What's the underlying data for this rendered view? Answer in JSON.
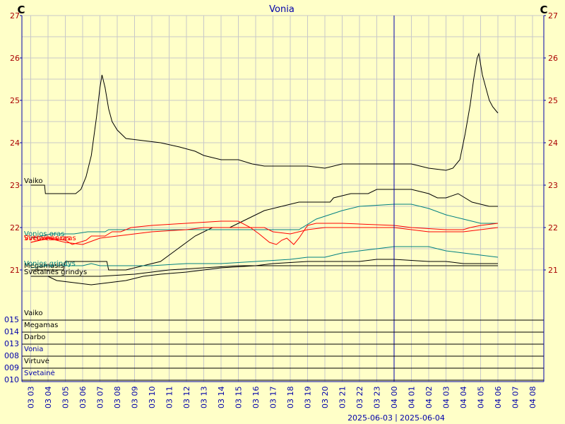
{
  "chart_data": {
    "type": "line",
    "title": "Vonia",
    "unit_left": "C",
    "unit_right": "C",
    "ylim": [
      20.05,
      27
    ],
    "y_ticks": [
      21,
      22,
      23,
      24,
      25,
      26,
      27
    ],
    "x_tick_labels": [
      {
        "date": "03",
        "hour": "03"
      },
      {
        "date": "03",
        "hour": "04"
      },
      {
        "date": "03",
        "hour": "05"
      },
      {
        "date": "03",
        "hour": "06"
      },
      {
        "date": "03",
        "hour": "07"
      },
      {
        "date": "03",
        "hour": "08"
      },
      {
        "date": "03",
        "hour": "09"
      },
      {
        "date": "03",
        "hour": "10"
      },
      {
        "date": "03",
        "hour": "11"
      },
      {
        "date": "03",
        "hour": "12"
      },
      {
        "date": "03",
        "hour": "13"
      },
      {
        "date": "03",
        "hour": "14"
      },
      {
        "date": "03",
        "hour": "15"
      },
      {
        "date": "03",
        "hour": "16"
      },
      {
        "date": "03",
        "hour": "17"
      },
      {
        "date": "03",
        "hour": "18"
      },
      {
        "date": "03",
        "hour": "19"
      },
      {
        "date": "03",
        "hour": "20"
      },
      {
        "date": "03",
        "hour": "21"
      },
      {
        "date": "03",
        "hour": "22"
      },
      {
        "date": "03",
        "hour": "23"
      },
      {
        "date": "04",
        "hour": "00"
      },
      {
        "date": "04",
        "hour": "01"
      },
      {
        "date": "04",
        "hour": "02"
      },
      {
        "date": "04",
        "hour": "03"
      },
      {
        "date": "04",
        "hour": "04"
      },
      {
        "date": "04",
        "hour": "05"
      },
      {
        "date": "04",
        "hour": "06"
      },
      {
        "date": "04",
        "hour": "07"
      },
      {
        "date": "04",
        "hour": "08"
      }
    ],
    "date_labels": [
      "2025-06-03",
      "2025-06-04"
    ],
    "grid": true,
    "colors": {
      "background": "#ffffc8",
      "grid": "#c8c8c8",
      "tick_text": "#aa0000",
      "black": "#000000",
      "red": "#ff0000",
      "teal": "#008080",
      "blue": "#0000aa"
    },
    "series": [
      {
        "name": "Vaiko",
        "color": "#000000",
        "points": [
          [
            3.0,
            23.0
          ],
          [
            3.8,
            23.0
          ],
          [
            3.85,
            22.8
          ],
          [
            4.7,
            22.8
          ],
          [
            5.6,
            22.8
          ],
          [
            5.9,
            22.9
          ],
          [
            6.2,
            23.2
          ],
          [
            6.5,
            23.7
          ],
          [
            6.8,
            24.6
          ],
          [
            7.0,
            25.3
          ],
          [
            7.12,
            25.6
          ],
          [
            7.3,
            25.3
          ],
          [
            7.5,
            24.8
          ],
          [
            7.7,
            24.5
          ],
          [
            8.0,
            24.3
          ],
          [
            8.5,
            24.1
          ],
          [
            10.5,
            24.0
          ],
          [
            11.6,
            23.9
          ],
          [
            12.5,
            23.8
          ],
          [
            13.0,
            23.7
          ],
          [
            14.0,
            23.6
          ],
          [
            15.0,
            23.6
          ],
          [
            15.8,
            23.5
          ],
          [
            16.5,
            23.45
          ],
          [
            18.0,
            23.45
          ],
          [
            18.5,
            23.45
          ],
          [
            19.0,
            23.45
          ],
          [
            20.0,
            23.4
          ],
          [
            21.0,
            23.5
          ],
          [
            23.0,
            23.5
          ],
          [
            24.0,
            23.5
          ],
          [
            25.0,
            23.5
          ],
          [
            26.0,
            23.4
          ],
          [
            27.0,
            23.35
          ],
          [
            27.4,
            23.4
          ],
          [
            27.8,
            23.6
          ],
          [
            28.1,
            24.2
          ],
          [
            28.4,
            24.9
          ],
          [
            28.6,
            25.5
          ],
          [
            28.8,
            26.0
          ],
          [
            28.9,
            26.1
          ],
          [
            29.1,
            25.6
          ],
          [
            29.3,
            25.3
          ],
          [
            29.5,
            25.0
          ],
          [
            29.7,
            24.85
          ],
          [
            29.9,
            24.75
          ],
          [
            30.0,
            24.7
          ]
        ]
      },
      {
        "name": "Megamasis",
        "color": "#000000",
        "points": [
          [
            3.0,
            21.0
          ],
          [
            4.9,
            21.0
          ],
          [
            5.0,
            21.2
          ],
          [
            6.0,
            21.2
          ],
          [
            7.4,
            21.2
          ],
          [
            7.5,
            21.0
          ],
          [
            8.5,
            21.0
          ],
          [
            9.0,
            21.05
          ],
          [
            10.5,
            21.2
          ],
          [
            11.5,
            21.5
          ],
          [
            12.5,
            21.8
          ],
          [
            13.5,
            22.0
          ],
          [
            14.5,
            22.0
          ],
          [
            15.5,
            22.2
          ],
          [
            16.5,
            22.4
          ],
          [
            17.5,
            22.5
          ],
          [
            18.5,
            22.6
          ],
          [
            20.0,
            22.6
          ],
          [
            20.3,
            22.6
          ],
          [
            20.5,
            22.7
          ],
          [
            21.5,
            22.8
          ],
          [
            22.5,
            22.8
          ],
          [
            23.0,
            22.9
          ],
          [
            25.0,
            22.9
          ],
          [
            26.0,
            22.8
          ],
          [
            26.5,
            22.7
          ],
          [
            27.0,
            22.7
          ],
          [
            27.7,
            22.8
          ],
          [
            28.5,
            22.6
          ],
          [
            29.5,
            22.5
          ],
          [
            30.0,
            22.5
          ]
        ]
      },
      {
        "name": "Vonios oras",
        "color": "#008080",
        "points": [
          [
            3.0,
            21.75
          ],
          [
            4.2,
            21.85
          ],
          [
            5.5,
            21.85
          ],
          [
            6.3,
            21.9
          ],
          [
            7.3,
            21.9
          ],
          [
            7.5,
            21.95
          ],
          [
            9.0,
            21.95
          ],
          [
            10.0,
            21.95
          ],
          [
            12.0,
            21.95
          ],
          [
            13.5,
            21.95
          ],
          [
            16.0,
            21.95
          ],
          [
            17.0,
            21.95
          ],
          [
            18.5,
            21.95
          ],
          [
            19.5,
            22.2
          ],
          [
            21.0,
            22.4
          ],
          [
            22.0,
            22.5
          ],
          [
            24.0,
            22.55
          ],
          [
            25.0,
            22.55
          ],
          [
            26.0,
            22.45
          ],
          [
            27.0,
            22.3
          ],
          [
            28.0,
            22.2
          ],
          [
            29.0,
            22.1
          ],
          [
            30.0,
            22.1
          ]
        ]
      },
      {
        "name": "Virtuvės oras",
        "color": "#ff0000",
        "points": [
          [
            3.0,
            21.65
          ],
          [
            4.1,
            21.75
          ],
          [
            5.0,
            21.7
          ],
          [
            5.4,
            21.6
          ],
          [
            6.2,
            21.7
          ],
          [
            6.5,
            21.8
          ],
          [
            7.3,
            21.8
          ],
          [
            7.7,
            21.9
          ],
          [
            8.2,
            21.9
          ],
          [
            8.8,
            22.0
          ],
          [
            10.0,
            22.05
          ],
          [
            12.0,
            22.1
          ],
          [
            14.0,
            22.15
          ],
          [
            15.0,
            22.15
          ],
          [
            15.7,
            22.0
          ],
          [
            16.2,
            21.85
          ],
          [
            16.8,
            21.65
          ],
          [
            17.2,
            21.6
          ],
          [
            17.5,
            21.7
          ],
          [
            17.8,
            21.75
          ],
          [
            18.2,
            21.6
          ],
          [
            18.5,
            21.75
          ],
          [
            19.0,
            22.05
          ],
          [
            19.5,
            22.1
          ],
          [
            21.0,
            22.1
          ],
          [
            24.0,
            22.05
          ],
          [
            25.0,
            22.0
          ],
          [
            27.0,
            21.95
          ],
          [
            28.0,
            21.95
          ],
          [
            28.4,
            22.0
          ],
          [
            29.0,
            22.05
          ],
          [
            30.0,
            22.1
          ]
        ]
      },
      {
        "name": "Svetainės oras",
        "color": "#ff0000",
        "points": [
          [
            3.0,
            21.65
          ],
          [
            4.0,
            21.75
          ],
          [
            5.0,
            21.65
          ],
          [
            6.0,
            21.6
          ],
          [
            7.0,
            21.75
          ],
          [
            8.0,
            21.8
          ],
          [
            10.0,
            21.9
          ],
          [
            12.0,
            21.95
          ],
          [
            13.0,
            22.0
          ],
          [
            15.0,
            22.0
          ],
          [
            16.5,
            22.0
          ],
          [
            17.0,
            21.9
          ],
          [
            18.0,
            21.85
          ],
          [
            19.0,
            21.95
          ],
          [
            20.0,
            22.0
          ],
          [
            24.0,
            22.0
          ],
          [
            26.0,
            21.9
          ],
          [
            28.0,
            21.9
          ],
          [
            30.0,
            22.0
          ]
        ]
      },
      {
        "name": "Vonios grindys",
        "color": "#008080",
        "points": [
          [
            3.0,
            21.05
          ],
          [
            4.0,
            21.1
          ],
          [
            5.0,
            21.1
          ],
          [
            6.0,
            21.1
          ],
          [
            6.5,
            21.15
          ],
          [
            7.0,
            21.1
          ],
          [
            10.0,
            21.1
          ],
          [
            12.0,
            21.15
          ],
          [
            14.0,
            21.15
          ],
          [
            16.0,
            21.2
          ],
          [
            18.0,
            21.25
          ],
          [
            19.0,
            21.3
          ],
          [
            20.0,
            21.3
          ],
          [
            21.0,
            21.4
          ],
          [
            22.0,
            21.45
          ],
          [
            23.0,
            21.5
          ],
          [
            24.0,
            21.55
          ],
          [
            25.0,
            21.55
          ],
          [
            26.0,
            21.55
          ],
          [
            26.5,
            21.5
          ],
          [
            27.0,
            21.45
          ],
          [
            28.0,
            21.4
          ],
          [
            29.0,
            21.35
          ],
          [
            30.0,
            21.3
          ]
        ]
      },
      {
        "name": "Vonios grindys",
        "color": "#000000",
        "points": [
          [
            3.0,
            20.85
          ],
          [
            4.0,
            20.85
          ],
          [
            4.5,
            20.75
          ],
          [
            5.5,
            20.7
          ],
          [
            6.5,
            20.65
          ],
          [
            7.5,
            20.7
          ],
          [
            8.5,
            20.75
          ],
          [
            9.5,
            20.85
          ],
          [
            10.5,
            20.9
          ],
          [
            12.0,
            20.95
          ],
          [
            13.0,
            21.0
          ],
          [
            14.0,
            21.05
          ],
          [
            16.0,
            21.1
          ],
          [
            17.0,
            21.15
          ],
          [
            19.0,
            21.2
          ],
          [
            20.0,
            21.2
          ],
          [
            22.0,
            21.2
          ],
          [
            23.0,
            21.25
          ],
          [
            24.0,
            21.25
          ],
          [
            26.0,
            21.2
          ],
          [
            27.0,
            21.2
          ],
          [
            28.0,
            21.15
          ],
          [
            30.0,
            21.15
          ]
        ]
      },
      {
        "name": "Svetainės grindys",
        "color": "#000000",
        "points": [
          [
            3.0,
            20.85
          ],
          [
            5.0,
            20.85
          ],
          [
            7.0,
            20.85
          ],
          [
            9.0,
            20.9
          ],
          [
            11.0,
            21.0
          ],
          [
            13.0,
            21.05
          ],
          [
            15.0,
            21.1
          ],
          [
            17.0,
            21.1
          ],
          [
            19.0,
            21.1
          ],
          [
            21.0,
            21.1
          ],
          [
            23.0,
            21.1
          ],
          [
            25.0,
            21.1
          ],
          [
            27.0,
            21.1
          ],
          [
            30.0,
            21.1
          ]
        ]
      }
    ],
    "legend_labels": [
      {
        "text": "Vaiko",
        "color": "#000000",
        "anchor_series": 0
      },
      {
        "text": "Megamasis",
        "color": "#000000",
        "anchor_series": 1
      },
      {
        "text": "Vonios oras",
        "color": "#008080",
        "anchor_series": 2
      },
      {
        "text": "Virtuvės oras",
        "color": "#ff0000",
        "anchor_series": 3
      },
      {
        "text": "Svetainės oras",
        "color": "#ff0000",
        "anchor_series": 4
      },
      {
        "text": "Vonios grindys",
        "color": "#008080",
        "anchor_series": 5
      },
      {
        "text": "Svetainės grindys",
        "color": "#000000",
        "anchor_series": 7
      }
    ],
    "binary_rows": [
      {
        "name": "Vaiko",
        "code": "015",
        "color": "#000000"
      },
      {
        "name": "Megamas",
        "code": "014",
        "color": "#000000"
      },
      {
        "name": "Darbo",
        "code": "013",
        "color": "#000000"
      },
      {
        "name": "Vonia",
        "code": "008",
        "color": "#0000aa"
      },
      {
        "name": "Virtuvė",
        "code": "009",
        "color": "#000000"
      },
      {
        "name": "Svetainė",
        "code": "010",
        "color": "#0000aa"
      }
    ],
    "marker_hour": 24.0
  }
}
